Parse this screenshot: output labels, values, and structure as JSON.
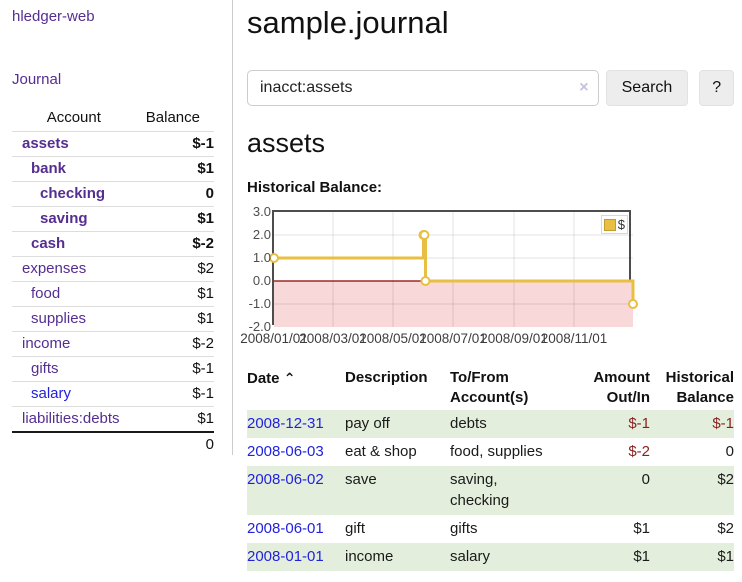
{
  "sidebar": {
    "brand": "hledger-web",
    "journal_link": "Journal",
    "account_header": "Account",
    "balance_header": "Balance",
    "accounts": [
      {
        "name": "assets",
        "balance": "$-1",
        "depth": 1,
        "bold": true,
        "balance_style": "neg-strong",
        "link_style": "purple"
      },
      {
        "name": "bank",
        "balance": "$1",
        "depth": 2,
        "bold": true,
        "balance_style": "normal",
        "link_style": "purple"
      },
      {
        "name": "checking",
        "balance": "0",
        "depth": 3,
        "bold": true,
        "balance_style": "normal",
        "link_style": "purple"
      },
      {
        "name": "saving",
        "balance": "$1",
        "depth": 3,
        "bold": true,
        "balance_style": "normal",
        "link_style": "purple"
      },
      {
        "name": "cash",
        "balance": "$-2",
        "depth": 2,
        "bold": true,
        "balance_style": "neg-strong",
        "link_style": "purple"
      },
      {
        "name": "expenses",
        "balance": "$2",
        "depth": 1,
        "bold": false,
        "balance_style": "normal",
        "link_style": "purple"
      },
      {
        "name": "food",
        "balance": "$1",
        "depth": 2,
        "bold": false,
        "balance_style": "normal",
        "link_style": "purple"
      },
      {
        "name": "supplies",
        "balance": "$1",
        "depth": 2,
        "bold": false,
        "balance_style": "normal",
        "link_style": "purple"
      },
      {
        "name": "income",
        "balance": "$-2",
        "depth": 1,
        "bold": false,
        "balance_style": "neg-soft",
        "link_style": "purple"
      },
      {
        "name": "gifts",
        "balance": "$-1",
        "depth": 2,
        "bold": false,
        "balance_style": "neg-soft",
        "link_style": "purple"
      },
      {
        "name": "salary",
        "balance": "$-1",
        "depth": 2,
        "bold": false,
        "balance_style": "neg-soft",
        "link_style": "blue"
      },
      {
        "name": "liabilities:debts",
        "balance": "$1",
        "depth": 1,
        "bold": false,
        "balance_style": "normal",
        "link_style": "purple"
      }
    ],
    "total": "0"
  },
  "main": {
    "title": "sample.journal",
    "search": {
      "value": "inacct:assets",
      "clear_icon": "×",
      "search_button": "Search",
      "help_button": "?"
    },
    "account_title": "assets",
    "chart_label": "Historical Balance:"
  },
  "chart_data": {
    "type": "line",
    "step": true,
    "title": "Historical Balance",
    "series": [
      {
        "name": "$",
        "color": "#e8bf42",
        "points": [
          [
            "2008-01-01",
            1
          ],
          [
            "2008-06-01",
            2
          ],
          [
            "2008-06-02",
            2
          ],
          [
            "2008-06-03",
            0
          ],
          [
            "2008-12-31",
            -1
          ]
        ]
      }
    ],
    "ylim": [
      -2,
      3
    ],
    "yticks": [
      "3.0",
      "2.0",
      "1.0",
      "0.0",
      "-1.0",
      "-2.0"
    ],
    "xticks": [
      {
        "label": "2008/01/01",
        "date": "2008-01-01"
      },
      {
        "label": "2008/03/01",
        "date": "2008-03-01"
      },
      {
        "label": "2008/05/01",
        "date": "2008-05-01"
      },
      {
        "label": "2008/07/01",
        "date": "2008-07-01"
      },
      {
        "label": "2008/09/01",
        "date": "2008-09-01"
      },
      {
        "label": "2008/11/01",
        "date": "2008-11-01"
      }
    ],
    "xrange": [
      "2008-01-01",
      "2008-12-31"
    ],
    "grid": true,
    "legend_position": "top-right",
    "negative_zone": {
      "from": -2,
      "to": 0,
      "fill": "#f8d8d8",
      "line": "#8b0000"
    }
  },
  "register": {
    "headers": [
      {
        "label": "Date",
        "sort_icon": "⌃"
      },
      {
        "label": "Description"
      },
      {
        "label": "To/From Account(s)"
      },
      {
        "label": "Amount Out/In"
      },
      {
        "label": "Historical Balance"
      }
    ],
    "rows": [
      {
        "date": "2008-12-31",
        "description": "pay off",
        "accounts": "debts",
        "amount": "$-1",
        "amount_neg": true,
        "balance": "$-1",
        "balance_neg": true,
        "green": true
      },
      {
        "date": "2008-06-03",
        "description": "eat & shop",
        "accounts": "food, supplies",
        "amount": "$-2",
        "amount_neg": true,
        "balance": "0",
        "balance_neg": false,
        "green": false
      },
      {
        "date": "2008-06-02",
        "description": "save",
        "accounts": "saving, checking",
        "amount": "0",
        "amount_neg": false,
        "balance": "$2",
        "balance_neg": false,
        "green": true
      },
      {
        "date": "2008-06-01",
        "description": "gift",
        "accounts": "gifts",
        "amount": "$1",
        "amount_neg": false,
        "balance": "$2",
        "balance_neg": false,
        "green": false
      },
      {
        "date": "2008-01-01",
        "description": "income",
        "accounts": "salary",
        "amount": "$1",
        "amount_neg": false,
        "balance": "$1",
        "balance_neg": false,
        "green": true
      }
    ]
  }
}
